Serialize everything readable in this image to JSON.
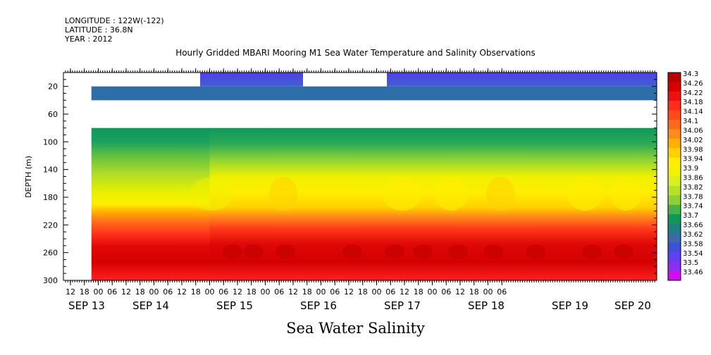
{
  "header": {
    "longitude": "LONGITUDE : 122W(-122)",
    "latitude": "LATITUDE : 36.8N",
    "year": "YEAR : 2012",
    "title": "Hourly Gridded MBARI Mooring M1 Sea Water Temperature and Salinity Observations"
  },
  "chart_data": {
    "type": "heatmap",
    "title": "Hourly Gridded MBARI Mooring M1 Sea Water Temperature and Salinity Observations",
    "xlabel": "Sea Water Salinity",
    "ylabel": "DEPTH (m)",
    "y_axis": {
      "inverted": true,
      "ylim": [
        0,
        300
      ],
      "ticks": [
        20,
        60,
        100,
        140,
        180,
        220,
        260,
        300
      ]
    },
    "x_axis": {
      "hour_labels": [
        "12",
        "18",
        "00",
        "06",
        "12",
        "18",
        "00",
        "06",
        "12",
        "18",
        "00",
        "06",
        "12",
        "18",
        "00",
        "06",
        "12",
        "18",
        "00",
        "06",
        "12",
        "18",
        "00",
        "06",
        "12",
        "18",
        "00",
        "06",
        "12",
        "18",
        "00",
        "06"
      ],
      "day_labels": [
        "SEP 13",
        "SEP 14",
        "SEP 15",
        "SEP 16",
        "SEP 17",
        "SEP 18",
        "SEP 19",
        "SEP 20"
      ]
    },
    "colorbar": {
      "levels": [
        34.3,
        34.26,
        34.22,
        34.18,
        34.14,
        34.1,
        34.06,
        34.02,
        33.98,
        33.94,
        33.9,
        33.86,
        33.82,
        33.78,
        33.74,
        33.7,
        33.66,
        33.62,
        33.58,
        33.54,
        33.5,
        33.46
      ],
      "colors": [
        "#b80000",
        "#d40000",
        "#ee1010",
        "#ff2e1a",
        "#ff4a1a",
        "#ff6a1a",
        "#ff8c1a",
        "#ffb000",
        "#ffd200",
        "#ffee00",
        "#f2f200",
        "#d8ef20",
        "#b8e028",
        "#8ed038",
        "#4cb048",
        "#109858",
        "#1e8080",
        "#3a6aa8",
        "#4050d8",
        "#6040f0",
        "#8c30f0",
        "#cc10f0"
      ]
    },
    "profile": [
      {
        "depth": 80,
        "value": 33.7
      },
      {
        "depth": 100,
        "value": 33.74
      },
      {
        "depth": 120,
        "value": 33.82
      },
      {
        "depth": 140,
        "value": 33.9
      },
      {
        "depth": 160,
        "value": 33.94
      },
      {
        "depth": 180,
        "value": 33.98
      },
      {
        "depth": 200,
        "value": 34.06
      },
      {
        "depth": 220,
        "value": 34.14
      },
      {
        "depth": 240,
        "value": 34.22
      },
      {
        "depth": 260,
        "value": 34.26
      },
      {
        "depth": 280,
        "value": 34.26
      },
      {
        "depth": 300,
        "value": 34.22
      }
    ],
    "surface": [
      {
        "depth": 10,
        "value": 33.58
      },
      {
        "depth": 30,
        "value": 33.66
      }
    ]
  }
}
